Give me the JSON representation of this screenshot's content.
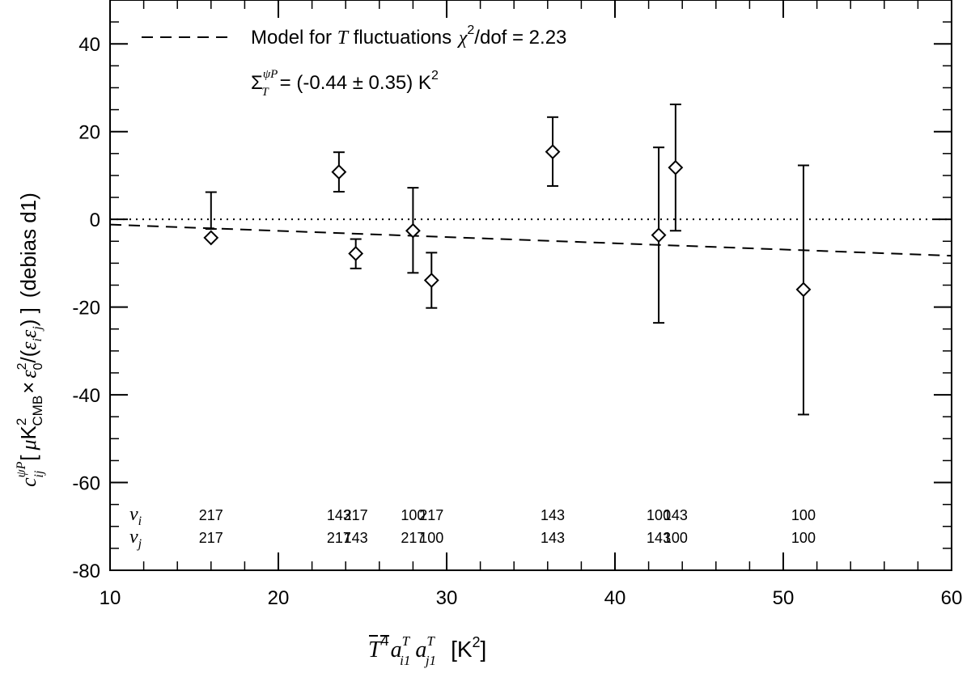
{
  "chart_data": {
    "type": "scatter",
    "xlim": [
      10,
      60
    ],
    "ylim": [
      -80,
      50
    ],
    "x_ticks": [
      "10",
      "20",
      "30",
      "40",
      "50",
      "60"
    ],
    "y_ticks": [
      "-80",
      "-60",
      "-40",
      "-20",
      "0",
      "20",
      "40"
    ],
    "xlabel": {
      "symbol": "T",
      "exp": "4",
      "a": "a",
      "sup_T": "T",
      "sub_i1": "i1",
      "sub_j1": "j1",
      "unit": "[K",
      "unit_exp": "2",
      "unit_close": "]"
    },
    "ylabel": {
      "c": "c",
      "c_sup": "ψP",
      "c_sub": "ij",
      "open": "[",
      "mu": "μ",
      "K": "K",
      "K_sup": "2",
      "K_sub": "CMB",
      "times": "×",
      "eps0": "ε",
      "eps0_sub": "0",
      "eps0_sup": "2",
      "slash": "/(",
      "epsi": "ε",
      "epsi_sub": "i",
      "epsj": "ε",
      "epsj_sub": "j",
      "close": ") ]",
      "suffix": "(debias d1)"
    },
    "legend": {
      "model_prefix": "Model for",
      "model_T": "T",
      "model_suffix": "fluctuations",
      "chi": "χ",
      "chi_exp": "2",
      "chi_rest": "/dof = 2.23",
      "sigma": "Σ",
      "sigma_sup": "ψP",
      "sigma_sub": "T",
      "sigma_value": "= (-0.44 ± 0.35) K",
      "sigma_value_exp": "2"
    },
    "series": [
      {
        "marker": "diamond",
        "points": [
          {
            "x": 16.0,
            "y": -4.2,
            "err_low": 6.2,
            "err_high": -2.2,
            "nu_i": "217",
            "nu_j": "217"
          },
          {
            "x": 23.6,
            "y": 10.8,
            "err_low": 6.3,
            "err_high": 15.3,
            "nu_i": "143",
            "nu_j": "217"
          },
          {
            "x": 24.6,
            "y": -7.8,
            "err_low": -11.2,
            "err_high": -4.5,
            "nu_i": "217",
            "nu_j": "143"
          },
          {
            "x": 28.0,
            "y": -2.6,
            "err_low": -12.2,
            "err_high": 7.2,
            "nu_i": "100",
            "nu_j": "217"
          },
          {
            "x": 29.1,
            "y": -13.9,
            "err_low": -20.2,
            "err_high": -7.6,
            "nu_i": "217",
            "nu_j": "100"
          },
          {
            "x": 36.3,
            "y": 15.4,
            "err_low": 7.6,
            "err_high": 23.3,
            "nu_i": "143",
            "nu_j": "143"
          },
          {
            "x": 42.6,
            "y": -3.6,
            "err_low": -23.6,
            "err_high": 16.4,
            "nu_i": "100",
            "nu_j": "143"
          },
          {
            "x": 43.6,
            "y": 11.8,
            "err_low": -2.6,
            "err_high": 26.2,
            "nu_i": "143",
            "nu_j": "100"
          },
          {
            "x": 51.2,
            "y": -16.0,
            "err_low": -44.5,
            "err_high": 12.3,
            "nu_i": "100",
            "nu_j": "100"
          }
        ]
      }
    ],
    "freq_row_labels": {
      "nu": "ν",
      "i": "i",
      "j": "j"
    },
    "model_line": {
      "style": "dashed",
      "x": [
        10,
        60
      ],
      "y": [
        -1.2,
        -8.3
      ]
    },
    "zero_line": {
      "style": "dotted",
      "y": 0
    }
  }
}
